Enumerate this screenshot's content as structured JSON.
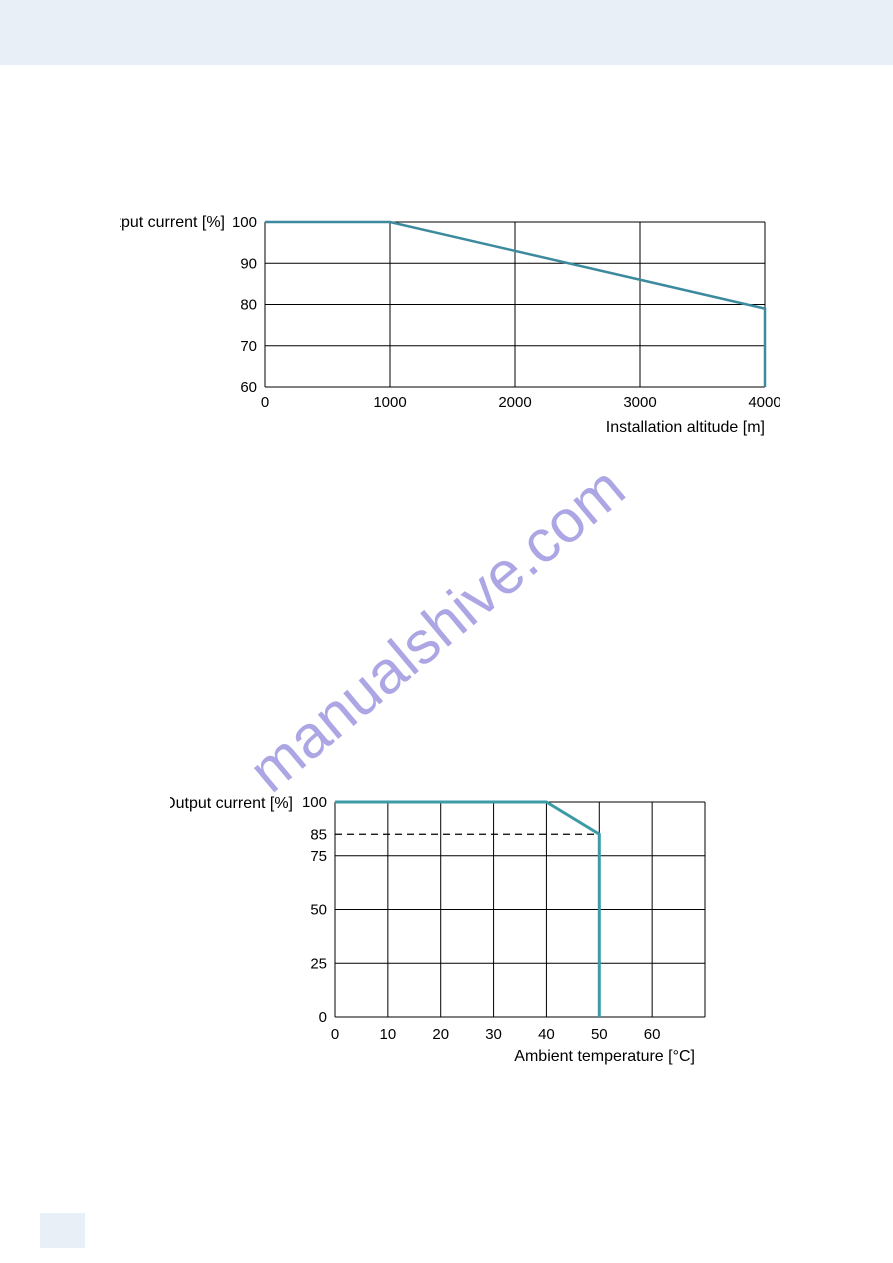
{
  "watermark": {
    "text": "manualshive.com",
    "color": "#8a83d9",
    "opacity": 0.7,
    "fontsize": 60,
    "rotation": -40
  },
  "chart1": {
    "type": "line",
    "ylabel": "Output current [%]",
    "xlabel": "Installation altitude [m]",
    "ylim": [
      60,
      100
    ],
    "xlim": [
      0,
      4000
    ],
    "ytick_step": 10,
    "xtick_step": 1000,
    "yticks": [
      60,
      70,
      80,
      90,
      100
    ],
    "xticks": [
      0,
      1000,
      2000,
      3000,
      4000
    ],
    "line_color": "#3d8a9e",
    "line_width": 2.5,
    "grid_color": "#000000",
    "background_color": "#ffffff",
    "label_fontsize": 16,
    "tick_fontsize": 15,
    "data": [
      {
        "x": 0,
        "y": 100
      },
      {
        "x": 1000,
        "y": 100
      },
      {
        "x": 4000,
        "y": 79
      }
    ]
  },
  "chart2": {
    "type": "line",
    "ylabel": "Output current [%]",
    "xlabel": "Ambient temperature [°C]",
    "ylim": [
      0,
      100
    ],
    "xlim": [
      0,
      70
    ],
    "yticks": [
      0,
      25,
      50,
      75,
      85,
      100
    ],
    "xticks": [
      0,
      10,
      20,
      30,
      40,
      50,
      60
    ],
    "line_color": "#3d9ba8",
    "line_width": 3,
    "dashed_color": "#000000",
    "grid_color": "#000000",
    "background_color": "#ffffff",
    "label_fontsize": 16,
    "tick_fontsize": 15,
    "data": [
      {
        "x": 0,
        "y": 100
      },
      {
        "x": 40,
        "y": 100
      },
      {
        "x": 50,
        "y": 85
      },
      {
        "x": 50,
        "y": 0
      }
    ],
    "dashed_line": {
      "y": 85,
      "x_end": 50
    }
  }
}
